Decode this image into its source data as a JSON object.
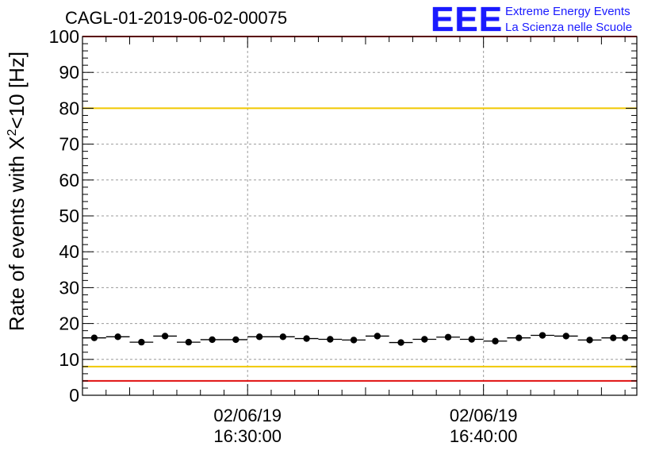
{
  "title": "CAGL-01-2019-06-02-00075",
  "logo": {
    "mark": "EEE",
    "line1": "Extreme Energy Events",
    "line2": "La Scienza nelle Scuole"
  },
  "chart_data": {
    "type": "scatter",
    "title": "CAGL-01-2019-06-02-00075",
    "ylabel_main": "Rate of events with X",
    "ylabel_sup": "2",
    "ylabel_tail": "<10 [Hz]",
    "xlabel": "",
    "ylim": [
      0,
      100
    ],
    "yticks": [
      0,
      10,
      20,
      30,
      40,
      50,
      60,
      70,
      80,
      90,
      100
    ],
    "xlim_minutes": [
      23.0,
      46.5
    ],
    "xticks": [
      {
        "minute": 30,
        "date": "02/06/19",
        "time": "16:30:00"
      },
      {
        "minute": 40,
        "date": "02/06/19",
        "time": "16:40:00"
      }
    ],
    "grid": true,
    "series": [
      {
        "x_minutes": [
          23.5,
          24.5,
          25.5,
          26.5,
          27.5,
          28.5,
          29.5,
          30.5,
          31.5,
          32.5,
          33.5,
          34.5,
          35.5,
          36.5,
          37.5,
          38.5,
          39.5,
          40.5,
          41.5,
          42.5,
          43.5,
          44.5,
          45.5,
          46.0
        ],
        "y": [
          16.0,
          16.3,
          14.8,
          16.5,
          14.8,
          15.5,
          15.5,
          16.3,
          16.3,
          15.8,
          15.6,
          15.4,
          16.5,
          14.7,
          15.6,
          16.2,
          15.6,
          15.1,
          16.0,
          16.7,
          16.5,
          15.4,
          16.0,
          16.0
        ],
        "color": "#000000"
      }
    ],
    "reference_lines": [
      {
        "y": 80,
        "color": "#f0c800"
      },
      {
        "y": 8,
        "color": "#f0c800"
      },
      {
        "y": 100,
        "color": "#e01010"
      },
      {
        "y": 4,
        "color": "#e01010"
      }
    ]
  }
}
